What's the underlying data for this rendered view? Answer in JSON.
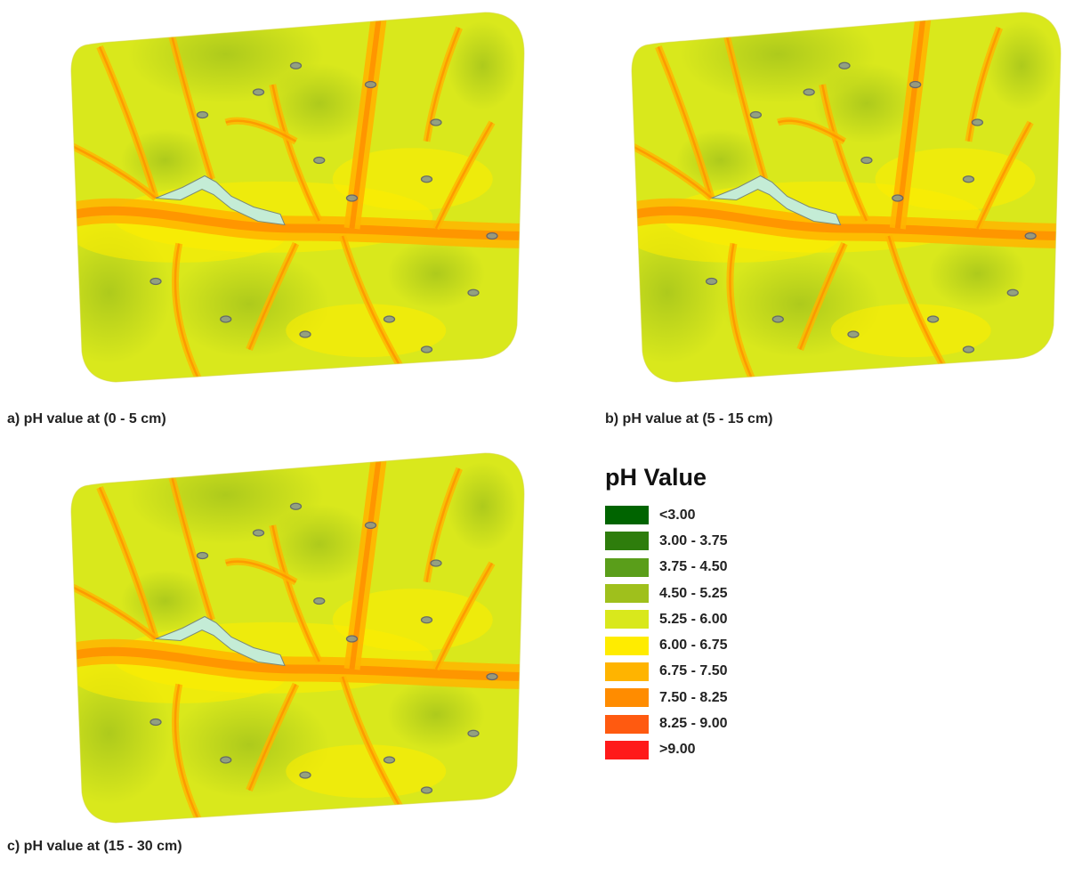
{
  "maps": [
    {
      "id": "a",
      "caption": "a)  pH value at (0 - 5 cm)"
    },
    {
      "id": "b",
      "caption": "b)  pH value at (5 - 15 cm)"
    },
    {
      "id": "c",
      "caption": "c)  pH value at (15 - 30 cm)"
    }
  ],
  "legend": {
    "title": "pH Value",
    "items": [
      {
        "label": "<3.00",
        "color": "#006400"
      },
      {
        "label": "3.00 - 3.75",
        "color": "#2e7d0c"
      },
      {
        "label": "3.75 - 4.50",
        "color": "#5a9e1a"
      },
      {
        "label": "4.50 - 5.25",
        "color": "#9fc01c"
      },
      {
        "label": "5.25 - 6.00",
        "color": "#d9e81c"
      },
      {
        "label": "6.00 - 6.75",
        "color": "#ffec00"
      },
      {
        "label": "6.75 - 7.50",
        "color": "#ffb400"
      },
      {
        "label": "7.50 - 8.25",
        "color": "#ff8c00"
      },
      {
        "label": "8.25 - 9.00",
        "color": "#ff5a10"
      },
      {
        "label": ">9.00",
        "color": "#ff1a1a"
      }
    ]
  },
  "water_color": "#c4ecd6"
}
